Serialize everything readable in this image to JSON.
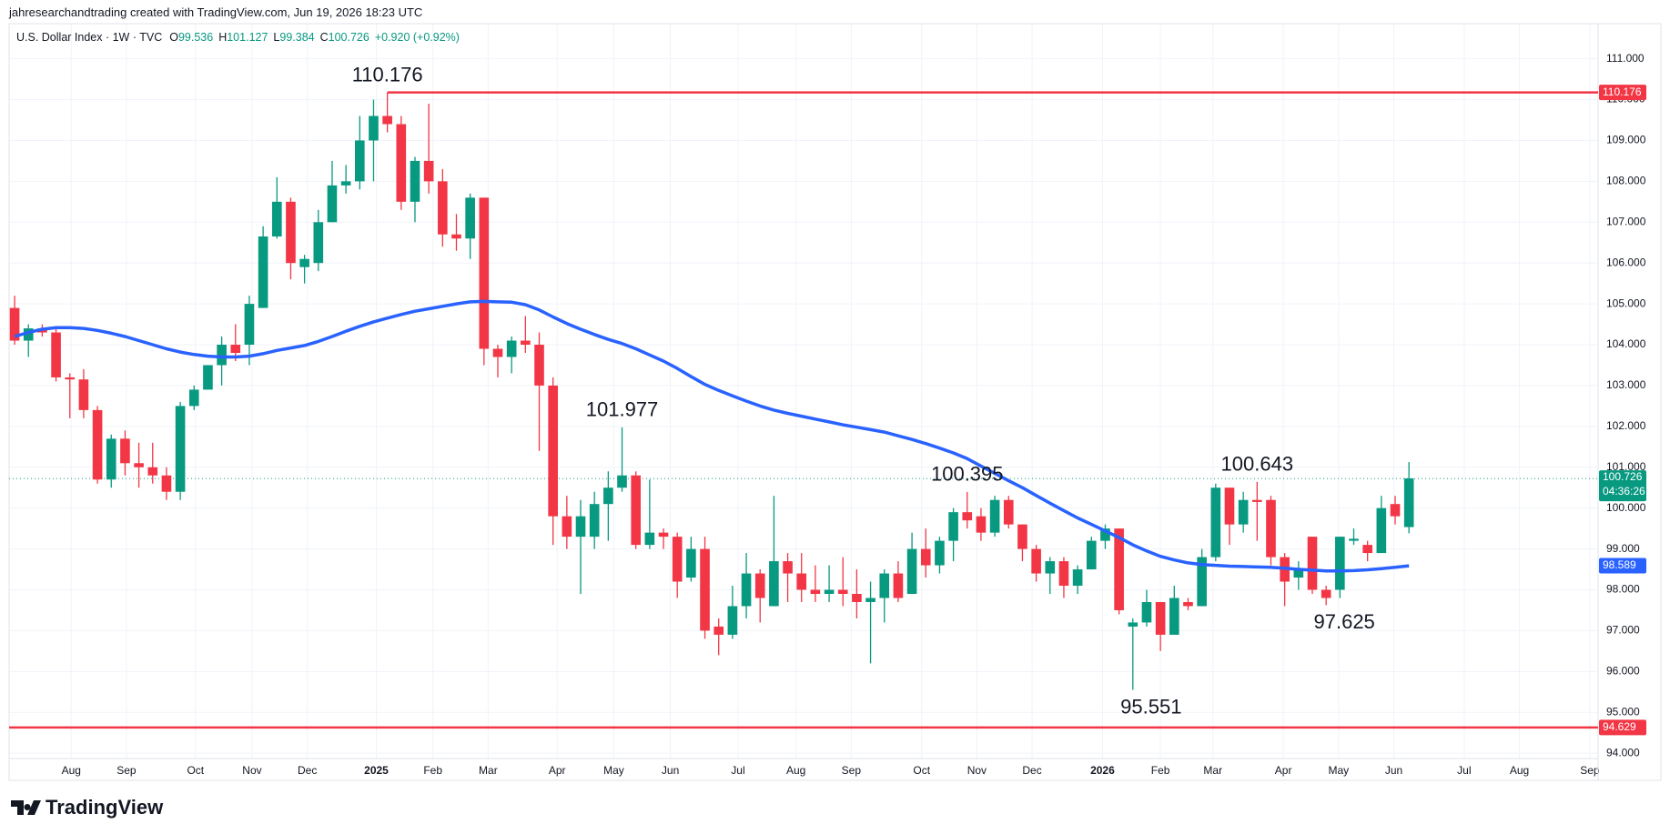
{
  "header": {
    "credit": "jahresearchandtrading created with TradingView.com, Jun 19, 2026 18:23 UTC"
  },
  "footer": {
    "brand": "TradingView"
  },
  "chart_data": {
    "type": "candlestick",
    "title": "U.S. Dollar Index · 1W · TVC",
    "legend": {
      "open_label": "O",
      "open": 99.536,
      "high_label": "H",
      "high": 101.127,
      "low_label": "L",
      "low": 99.384,
      "close_label": "C",
      "close": 100.726,
      "change": "+0.920 (+0.92%)"
    },
    "up_color": "#089981",
    "down_color": "#f23645",
    "open": [
      104.9,
      104.1,
      104.4,
      104.3,
      103.2,
      103.15,
      102.4,
      100.7,
      101.7,
      101.1,
      101.0,
      100.8,
      100.4,
      102.5,
      102.9,
      103.5,
      104.0,
      104.0,
      104.9,
      106.65,
      107.5,
      105.9,
      106.0,
      107.0,
      107.9,
      108.0,
      109.0,
      109.6,
      109.4,
      107.5,
      108.5,
      108.0,
      106.7,
      106.6,
      107.6,
      103.9,
      103.7,
      104.1,
      104.0,
      103.0,
      99.8,
      99.3,
      99.3,
      100.1,
      100.5,
      100.8,
      99.1,
      99.4,
      99.3,
      98.3,
      99.0,
      97.1,
      96.9,
      97.6,
      98.4,
      97.6,
      98.7,
      98.4,
      98.0,
      97.9,
      98.0,
      97.9,
      97.7,
      97.8,
      98.4,
      97.9,
      99.0,
      98.6,
      99.2,
      99.9,
      99.8,
      99.4,
      100.2,
      99.6,
      99.0,
      98.4,
      98.7,
      98.1,
      98.5,
      99.2,
      99.5,
      97.1,
      97.2,
      97.7,
      96.9,
      97.7,
      97.6,
      98.8,
      100.5,
      99.6,
      100.2,
      100.2,
      98.8,
      98.3,
      99.3,
      98.0,
      98.0,
      99.2,
      99.1,
      98.9,
      100.1,
      99.536
    ],
    "high": [
      105.2,
      104.5,
      104.5,
      104.4,
      103.3,
      103.4,
      102.5,
      101.8,
      101.9,
      101.6,
      101.6,
      101.0,
      102.6,
      103.0,
      103.5,
      104.2,
      104.5,
      105.2,
      106.9,
      108.1,
      107.6,
      106.2,
      107.3,
      108.5,
      108.4,
      109.6,
      110.0,
      110.176,
      109.6,
      108.6,
      109.9,
      108.3,
      107.2,
      107.7,
      107.6,
      104.0,
      104.2,
      104.7,
      104.3,
      103.2,
      100.3,
      100.2,
      100.4,
      100.9,
      101.977,
      100.9,
      100.7,
      99.5,
      99.4,
      99.3,
      99.3,
      97.3,
      98.1,
      98.9,
      98.5,
      100.3,
      98.9,
      98.9,
      98.6,
      98.6,
      98.8,
      98.5,
      98.2,
      98.5,
      98.7,
      99.4,
      99.5,
      99.3,
      100.0,
      100.395,
      100.0,
      100.3,
      100.3,
      99.6,
      99.1,
      98.8,
      98.8,
      98.6,
      99.3,
      99.6,
      99.5,
      97.3,
      98.0,
      97.7,
      98.1,
      97.8,
      99.0,
      100.6,
      100.5,
      100.4,
      100.643,
      100.3,
      98.9,
      98.7,
      99.3,
      98.1,
      99.3,
      99.5,
      99.2,
      100.3,
      100.3,
      101.127
    ],
    "low": [
      104.0,
      103.7,
      104.2,
      103.1,
      102.2,
      102.2,
      100.6,
      100.5,
      100.8,
      100.5,
      100.6,
      100.2,
      100.2,
      102.4,
      102.9,
      103.0,
      103.6,
      103.5,
      104.9,
      106.6,
      105.6,
      105.5,
      105.8,
      107.0,
      107.7,
      107.8,
      108.0,
      109.2,
      107.3,
      107.0,
      107.7,
      106.4,
      106.3,
      106.1,
      103.5,
      103.2,
      103.3,
      103.8,
      101.4,
      99.1,
      99.0,
      97.9,
      99.0,
      99.2,
      100.4,
      99.0,
      99.0,
      99.0,
      97.8,
      98.2,
      96.8,
      96.4,
      96.8,
      97.3,
      97.2,
      97.6,
      97.7,
      97.7,
      97.7,
      97.7,
      97.6,
      97.3,
      96.2,
      97.2,
      97.7,
      97.9,
      98.3,
      98.4,
      98.7,
      99.5,
      99.2,
      99.3,
      99.5,
      98.7,
      98.2,
      97.9,
      97.8,
      97.9,
      98.5,
      99.0,
      97.4,
      95.551,
      97.1,
      96.5,
      96.9,
      97.5,
      97.6,
      98.7,
      99.1,
      99.4,
      99.2,
      98.6,
      97.6,
      98.0,
      97.9,
      97.625,
      97.8,
      99.1,
      98.7,
      98.9,
      99.6,
      99.384
    ],
    "close": [
      104.1,
      104.4,
      104.3,
      103.2,
      103.15,
      102.4,
      100.7,
      101.7,
      101.1,
      101.0,
      100.8,
      100.4,
      102.5,
      102.9,
      103.5,
      104.0,
      103.8,
      105.0,
      106.65,
      107.5,
      106.0,
      106.1,
      107.0,
      107.9,
      108.0,
      109.0,
      109.6,
      109.4,
      107.5,
      108.5,
      108.0,
      106.7,
      106.6,
      107.6,
      103.9,
      103.7,
      104.1,
      104.0,
      103.0,
      99.8,
      99.3,
      99.8,
      100.1,
      100.5,
      100.8,
      99.1,
      99.4,
      99.3,
      98.2,
      99.0,
      97.0,
      96.9,
      97.6,
      98.4,
      97.8,
      98.7,
      98.4,
      98.0,
      97.9,
      98.0,
      97.9,
      97.7,
      97.8,
      98.4,
      97.8,
      99.0,
      98.6,
      99.2,
      99.9,
      99.7,
      99.4,
      100.2,
      99.6,
      99.0,
      98.4,
      98.7,
      98.1,
      98.5,
      99.2,
      99.5,
      97.5,
      97.2,
      97.7,
      96.9,
      97.8,
      97.6,
      98.8,
      100.5,
      99.6,
      100.2,
      100.15,
      98.8,
      98.2,
      98.5,
      98.0,
      97.8,
      99.3,
      99.25,
      98.9,
      100.0,
      99.8,
      100.726
    ],
    "ma": {
      "color": "#2962ff",
      "values": [
        104.2,
        104.3,
        104.38,
        104.42,
        104.42,
        104.4,
        104.35,
        104.28,
        104.2,
        104.1,
        104.0,
        103.9,
        103.82,
        103.76,
        103.72,
        103.7,
        103.7,
        103.72,
        103.78,
        103.86,
        103.92,
        103.98,
        104.08,
        104.2,
        104.33,
        104.45,
        104.56,
        104.65,
        104.74,
        104.82,
        104.88,
        104.94,
        105.0,
        105.05,
        105.06,
        105.05,
        105.04,
        104.98,
        104.85,
        104.68,
        104.52,
        104.38,
        104.25,
        104.13,
        104.03,
        103.9,
        103.75,
        103.6,
        103.42,
        103.22,
        103.03,
        102.88,
        102.75,
        102.62,
        102.5,
        102.4,
        102.32,
        102.25,
        102.18,
        102.11,
        102.04,
        101.98,
        101.92,
        101.86,
        101.77,
        101.68,
        101.58,
        101.47,
        101.35,
        101.21,
        101.03,
        100.85,
        100.67,
        100.5,
        100.31,
        100.12,
        99.94,
        99.76,
        99.6,
        99.44,
        99.28,
        99.1,
        98.95,
        98.82,
        98.73,
        98.66,
        98.62,
        98.6,
        98.58,
        98.57,
        98.56,
        98.55,
        98.53,
        98.5,
        98.48,
        98.46,
        98.46,
        98.47,
        98.49,
        98.52,
        98.55,
        98.589
      ]
    },
    "hlines": [
      {
        "value": 110.176,
        "color": "#f23645"
      },
      {
        "value": 94.629,
        "color": "#f23645"
      }
    ],
    "annotations": {
      "highs": [
        110.176,
        101.977,
        100.395,
        100.643
      ],
      "lows": [
        97.625,
        95.551
      ]
    },
    "countdown": "04:36:26",
    "ylim": [
      93.87,
      111.86
    ],
    "yticks": [
      {
        "value": 94,
        "label": "94.000"
      },
      {
        "value": 95,
        "label": "95.000"
      },
      {
        "value": 96,
        "label": "96.000"
      },
      {
        "value": 97,
        "label": "97.000"
      },
      {
        "value": 98,
        "label": "98.000"
      },
      {
        "value": 99,
        "label": "99.000"
      },
      {
        "value": 100,
        "label": "100.000"
      },
      {
        "value": 101,
        "label": "101.000"
      },
      {
        "value": 102,
        "label": "102.000"
      },
      {
        "value": 103,
        "label": "103.000"
      },
      {
        "value": 104,
        "label": "104.000"
      },
      {
        "value": 105,
        "label": "105.000"
      },
      {
        "value": 106,
        "label": "106.000"
      },
      {
        "value": 107,
        "label": "107.000"
      },
      {
        "value": 108,
        "label": "108.000"
      },
      {
        "value": 109,
        "label": "109.000"
      },
      {
        "value": 110,
        "label": "110.000"
      },
      {
        "value": 111,
        "label": "111.000"
      }
    ],
    "xlim": [
      -0.4,
      114.7
    ],
    "xticks": [
      {
        "value": 4.1,
        "label": "Aug"
      },
      {
        "value": 8.1,
        "label": "Sep"
      },
      {
        "value": 13.1,
        "label": "Oct"
      },
      {
        "value": 17.2,
        "label": "Nov"
      },
      {
        "value": 21.2,
        "label": "Dec"
      },
      {
        "value": 26.2,
        "label": "2025"
      },
      {
        "value": 30.3,
        "label": "Feb"
      },
      {
        "value": 34.3,
        "label": "Mar"
      },
      {
        "value": 39.3,
        "label": "Apr"
      },
      {
        "value": 43.4,
        "label": "May"
      },
      {
        "value": 47.5,
        "label": "Jun"
      },
      {
        "value": 52.4,
        "label": "Jul"
      },
      {
        "value": 56.6,
        "label": "Aug"
      },
      {
        "value": 60.6,
        "label": "Sep"
      },
      {
        "value": 65.7,
        "label": "Oct"
      },
      {
        "value": 69.7,
        "label": "Nov"
      },
      {
        "value": 73.7,
        "label": "Dec"
      },
      {
        "value": 78.8,
        "label": "2026"
      },
      {
        "value": 83.0,
        "label": "Feb"
      },
      {
        "value": 86.8,
        "label": "Mar"
      },
      {
        "value": 91.9,
        "label": "Apr"
      },
      {
        "value": 95.9,
        "label": "May"
      },
      {
        "value": 99.9,
        "label": "Jun"
      },
      {
        "value": 105.0,
        "label": "Jul"
      },
      {
        "value": 109.0,
        "label": "Aug"
      },
      {
        "value": 114.1,
        "label": "Sep"
      }
    ],
    "grid": true
  }
}
